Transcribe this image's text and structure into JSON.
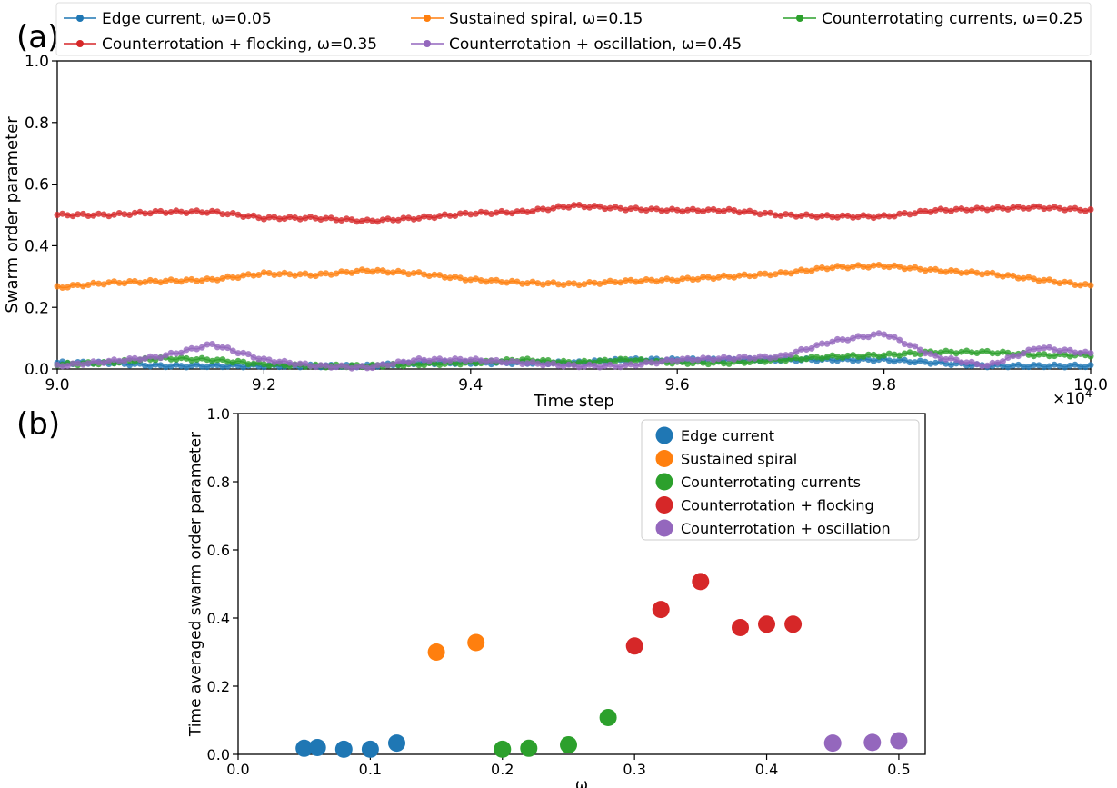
{
  "chart_data": [
    {
      "panel_label": "(a)",
      "type": "line",
      "xlabel": "Time step",
      "ylabel": "Swarm order parameter",
      "xlim": [
        90000,
        100000
      ],
      "ylim": [
        0.0,
        1.0
      ],
      "x_multiplier": "×10",
      "x_multiplier_exp": "4",
      "x_ticks": [
        90000,
        92000,
        94000,
        96000,
        98000,
        100000
      ],
      "x_tick_labels": [
        "9.0",
        "9.2",
        "9.4",
        "9.6",
        "9.8",
        "10.0"
      ],
      "y_ticks": [
        0.0,
        0.2,
        0.4,
        0.6,
        0.8,
        1.0
      ],
      "y_tick_labels": [
        "0.0",
        "0.2",
        "0.4",
        "0.6",
        "0.8",
        "1.0"
      ],
      "grid": false,
      "legend_position": "top, above plot, 3 columns",
      "series": [
        {
          "name": "Edge current, ω=0.05",
          "color": "#1f77b4",
          "x": [
            90000,
            90500,
            91000,
            91500,
            92000,
            92500,
            93000,
            93500,
            94000,
            94500,
            95000,
            95500,
            96000,
            96500,
            97000,
            97500,
            98000,
            98500,
            99000,
            99500,
            100000
          ],
          "y": [
            0.02,
            0.02,
            0.01,
            0.01,
            0.01,
            0.01,
            0.01,
            0.02,
            0.02,
            0.02,
            0.02,
            0.03,
            0.03,
            0.03,
            0.03,
            0.03,
            0.03,
            0.02,
            0.01,
            0.01,
            0.01
          ]
        },
        {
          "name": "Sustained spiral, ω=0.15",
          "color": "#ff7f0e",
          "x": [
            90000,
            90500,
            91000,
            91500,
            92000,
            92500,
            93000,
            93500,
            94000,
            94500,
            95000,
            95500,
            96000,
            96500,
            97000,
            97500,
            98000,
            98500,
            99000,
            99500,
            100000
          ],
          "y": [
            0.265,
            0.28,
            0.285,
            0.29,
            0.31,
            0.305,
            0.32,
            0.31,
            0.29,
            0.28,
            0.275,
            0.285,
            0.29,
            0.3,
            0.31,
            0.33,
            0.335,
            0.32,
            0.31,
            0.29,
            0.27
          ]
        },
        {
          "name": "Counterrotating currents, ω=0.25",
          "color": "#2ca02c",
          "x": [
            90000,
            90500,
            91000,
            91500,
            92000,
            92500,
            93000,
            93500,
            94000,
            94500,
            95000,
            95500,
            96000,
            96500,
            97000,
            97500,
            98000,
            98500,
            99000,
            99500,
            100000
          ],
          "y": [
            0.015,
            0.02,
            0.035,
            0.03,
            0.015,
            0.01,
            0.01,
            0.015,
            0.02,
            0.03,
            0.02,
            0.03,
            0.02,
            0.02,
            0.03,
            0.04,
            0.045,
            0.055,
            0.055,
            0.045,
            0.045
          ]
        },
        {
          "name": "Counterrotation + flocking, ω=0.35",
          "color": "#d62728",
          "x": [
            90000,
            90500,
            91000,
            91500,
            92000,
            92500,
            93000,
            93500,
            94000,
            94500,
            95000,
            95500,
            96000,
            96500,
            97000,
            97500,
            98000,
            98500,
            99000,
            99500,
            100000
          ],
          "y": [
            0.5,
            0.5,
            0.51,
            0.51,
            0.49,
            0.49,
            0.48,
            0.49,
            0.505,
            0.51,
            0.53,
            0.52,
            0.515,
            0.515,
            0.5,
            0.495,
            0.495,
            0.515,
            0.52,
            0.525,
            0.515
          ]
        },
        {
          "name": "Counterrotation + oscillation, ω=0.45",
          "color": "#9467bd",
          "x": [
            90000,
            90500,
            91000,
            91500,
            92000,
            92500,
            93000,
            93500,
            94000,
            94500,
            95000,
            95500,
            96000,
            96500,
            97000,
            97500,
            98000,
            98500,
            99000,
            99500,
            100000
          ],
          "y": [
            0.01,
            0.025,
            0.04,
            0.08,
            0.03,
            0.01,
            0.005,
            0.03,
            0.03,
            0.02,
            0.01,
            0.01,
            0.03,
            0.035,
            0.04,
            0.09,
            0.115,
            0.04,
            0.01,
            0.07,
            0.05
          ]
        }
      ]
    },
    {
      "panel_label": "(b)",
      "type": "scatter",
      "xlabel": "ω",
      "ylabel": "Time averaged swarm order parameter",
      "xlim": [
        0.0,
        0.52
      ],
      "ylim": [
        0.0,
        1.0
      ],
      "x_ticks": [
        0.0,
        0.1,
        0.2,
        0.3,
        0.4,
        0.5
      ],
      "x_tick_labels": [
        "0.0",
        "0.1",
        "0.2",
        "0.3",
        "0.4",
        "0.5"
      ],
      "y_ticks": [
        0.0,
        0.2,
        0.4,
        0.6,
        0.8,
        1.0
      ],
      "y_tick_labels": [
        "0.0",
        "0.2",
        "0.4",
        "0.6",
        "0.8",
        "1.0"
      ],
      "grid": false,
      "legend_position": "top-right",
      "series": [
        {
          "name": "Edge current",
          "color": "#1f77b4",
          "x": [
            0.05,
            0.06,
            0.08,
            0.1,
            0.12
          ],
          "y": [
            0.018,
            0.02,
            0.015,
            0.015,
            0.033
          ]
        },
        {
          "name": "Sustained spiral",
          "color": "#ff7f0e",
          "x": [
            0.15,
            0.18
          ],
          "y": [
            0.3,
            0.328
          ]
        },
        {
          "name": "Counterrotating currents",
          "color": "#2ca02c",
          "x": [
            0.2,
            0.22,
            0.25,
            0.28
          ],
          "y": [
            0.015,
            0.018,
            0.028,
            0.108
          ]
        },
        {
          "name": "Counterrotation + flocking",
          "color": "#d62728",
          "x": [
            0.3,
            0.32,
            0.35,
            0.38,
            0.4,
            0.42
          ],
          "y": [
            0.318,
            0.425,
            0.507,
            0.372,
            0.382,
            0.382
          ]
        },
        {
          "name": "Counterrotation + oscillation",
          "color": "#9467bd",
          "x": [
            0.45,
            0.48,
            0.5
          ],
          "y": [
            0.033,
            0.035,
            0.04
          ]
        }
      ]
    }
  ]
}
